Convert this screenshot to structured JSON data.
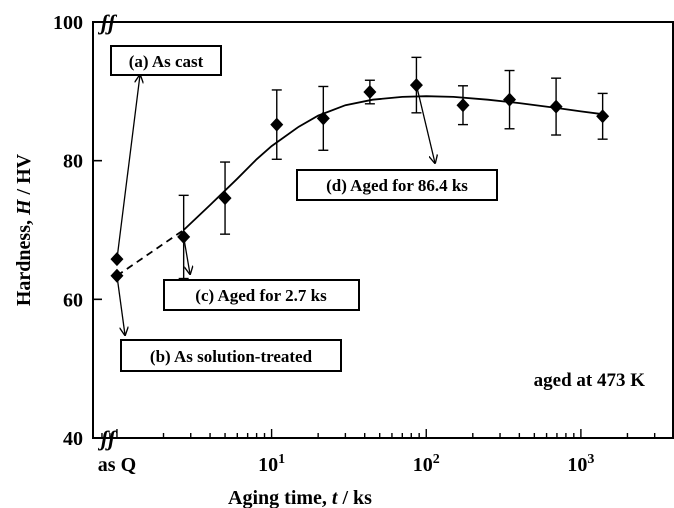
{
  "chart_data": {
    "type": "scatter",
    "title": "",
    "xlabel_parts": [
      "Aging time, ",
      "t",
      " / ks"
    ],
    "ylabel_parts": [
      "Hardness, ",
      "H",
      " / HV"
    ],
    "x_scale": "log",
    "xlim": [
      0.7,
      4000
    ],
    "ylim": [
      40,
      100
    ],
    "y_ticks": [
      40,
      60,
      80,
      100
    ],
    "x_tick_labels": [
      {
        "label": "as Q",
        "x": 1
      },
      {
        "label": "10",
        "sup": "1",
        "x": 10
      },
      {
        "label": "10",
        "sup": "2",
        "x": 100
      },
      {
        "label": "10",
        "sup": "3",
        "x": 1000
      }
    ],
    "axis_break_symbol": "ʃʃ",
    "series": [
      {
        "marker": "diamond",
        "points": [
          {
            "x": 1,
            "y": 65.8,
            "err": 0
          },
          {
            "x": 1,
            "y": 63.4,
            "err": 0
          },
          {
            "x": 2.7,
            "y": 69.0,
            "err": 6.0
          },
          {
            "x": 5.0,
            "y": 74.6,
            "err": 5.2
          },
          {
            "x": 10.8,
            "y": 85.2,
            "err": 5.0
          },
          {
            "x": 21.6,
            "y": 86.1,
            "err": 4.6
          },
          {
            "x": 43.2,
            "y": 89.9,
            "err": 1.7
          },
          {
            "x": 86.4,
            "y": 90.9,
            "err": 4.0
          },
          {
            "x": 172.8,
            "y": 88.0,
            "err": 2.8
          },
          {
            "x": 345.6,
            "y": 88.8,
            "err": 4.2
          },
          {
            "x": 691.2,
            "y": 87.8,
            "err": 4.1
          },
          {
            "x": 1382.4,
            "y": 86.4,
            "err": 3.3
          }
        ]
      }
    ],
    "fit_curve": [
      [
        2.7,
        70.0
      ],
      [
        4,
        73.6
      ],
      [
        6,
        77.4
      ],
      [
        8,
        80.2
      ],
      [
        10,
        82.1
      ],
      [
        15,
        84.9
      ],
      [
        20,
        86.5
      ],
      [
        30,
        88.0
      ],
      [
        45,
        88.8
      ],
      [
        70,
        89.2
      ],
      [
        100,
        89.3
      ],
      [
        150,
        89.2
      ],
      [
        250,
        88.8
      ],
      [
        400,
        88.3
      ],
      [
        700,
        87.6
      ],
      [
        1000,
        87.1
      ],
      [
        1382.4,
        86.7
      ]
    ],
    "dashed_line": [
      [
        1,
        63.4
      ],
      [
        2.7,
        70.0
      ]
    ],
    "annotations": [
      {
        "text": "(a) As cast"
      },
      {
        "text": "(b) As solution-treated"
      },
      {
        "text": "(c) Aged for 2.7 ks"
      },
      {
        "text": "(d) Aged for 86.4 ks"
      }
    ],
    "condition_label": "aged at 473 K",
    "grid": false,
    "legend": "none"
  }
}
